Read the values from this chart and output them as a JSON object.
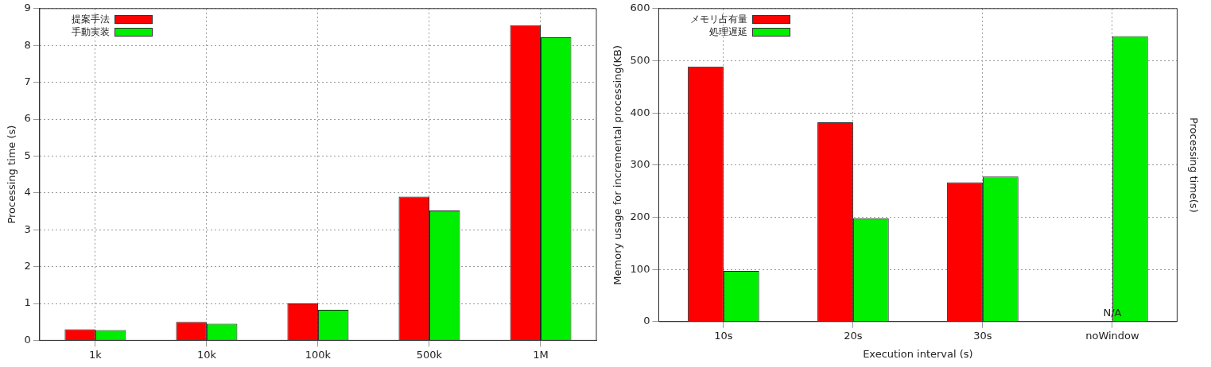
{
  "chart_data": [
    {
      "type": "bar",
      "ylabel": "Processing time (s)",
      "categories": [
        "1k",
        "10k",
        "100k",
        "500k",
        "1M"
      ],
      "series": [
        {
          "name": "提案手法",
          "color": "#ff0000",
          "values": [
            0.3,
            0.5,
            1.0,
            3.9,
            8.55
          ]
        },
        {
          "name": "手動実装",
          "color": "#00ee00",
          "values": [
            0.28,
            0.45,
            0.83,
            3.52,
            8.22
          ]
        }
      ],
      "ylim": [
        0,
        9
      ],
      "yticks": [
        0,
        1,
        2,
        3,
        4,
        5,
        6,
        7,
        8,
        9
      ],
      "grid": true,
      "legend": "top left"
    },
    {
      "type": "bar",
      "xlabel": "Execution interval (s)",
      "ylabel": "Memory usage for incremental processing(KB)",
      "y2label": "Processing time(s)",
      "categories": [
        "10s",
        "20s",
        "30s",
        "noWindow"
      ],
      "series": [
        {
          "name": "メモリ占有量",
          "color": "#ff0000",
          "values": [
            489,
            382,
            267,
            null
          ]
        },
        {
          "name": "処理遅延",
          "color": "#00ee00",
          "values": [
            97,
            198,
            278,
            547
          ]
        }
      ],
      "ylim": [
        0,
        600
      ],
      "yticks": [
        0,
        100,
        200,
        300,
        400,
        500,
        600
      ],
      "grid": true,
      "legend": "top left",
      "annotations": [
        {
          "text": "N/A",
          "x": "noWindow",
          "y": 0
        }
      ]
    }
  ]
}
